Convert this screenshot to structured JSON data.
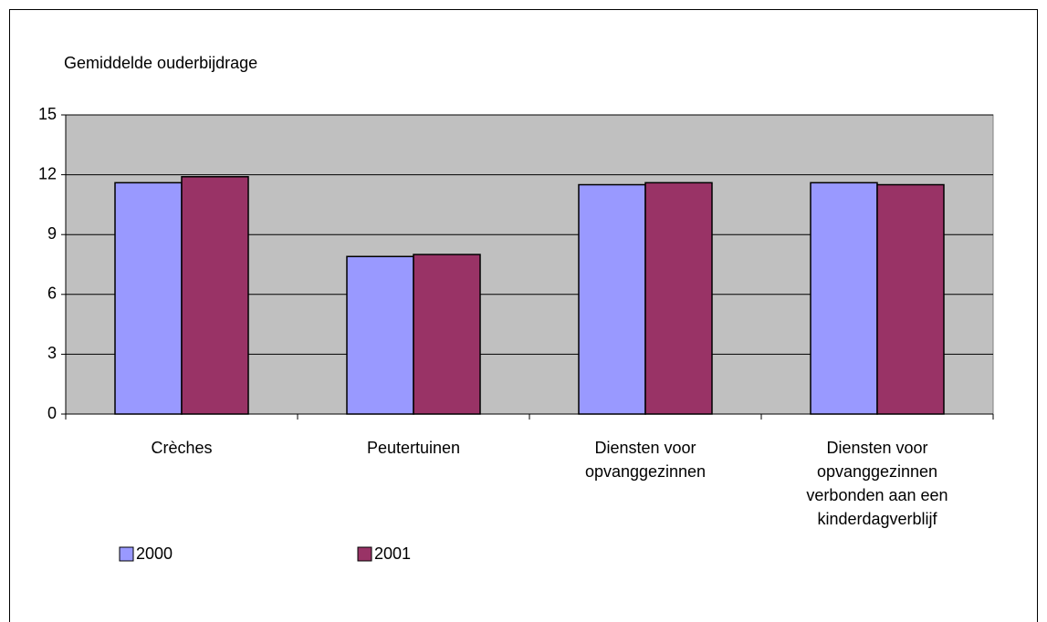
{
  "chart_data": {
    "type": "bar",
    "title": "Gemiddelde ouderbijdrage",
    "categories": [
      "Crèches",
      "Peutertuinen",
      "Diensten voor opvanggezinnen",
      "Diensten voor opvanggezinnen verbonden aan een kinderdagverblijf"
    ],
    "series": [
      {
        "name": "2000",
        "color": "#9999ff",
        "values": [
          11.6,
          7.9,
          11.5,
          11.6
        ]
      },
      {
        "name": "2001",
        "color": "#993366",
        "values": [
          11.9,
          8.0,
          11.6,
          11.5
        ]
      }
    ],
    "ylim": [
      0,
      15
    ],
    "yticks": [
      0,
      3,
      6,
      9,
      12,
      15
    ],
    "grid": true
  }
}
